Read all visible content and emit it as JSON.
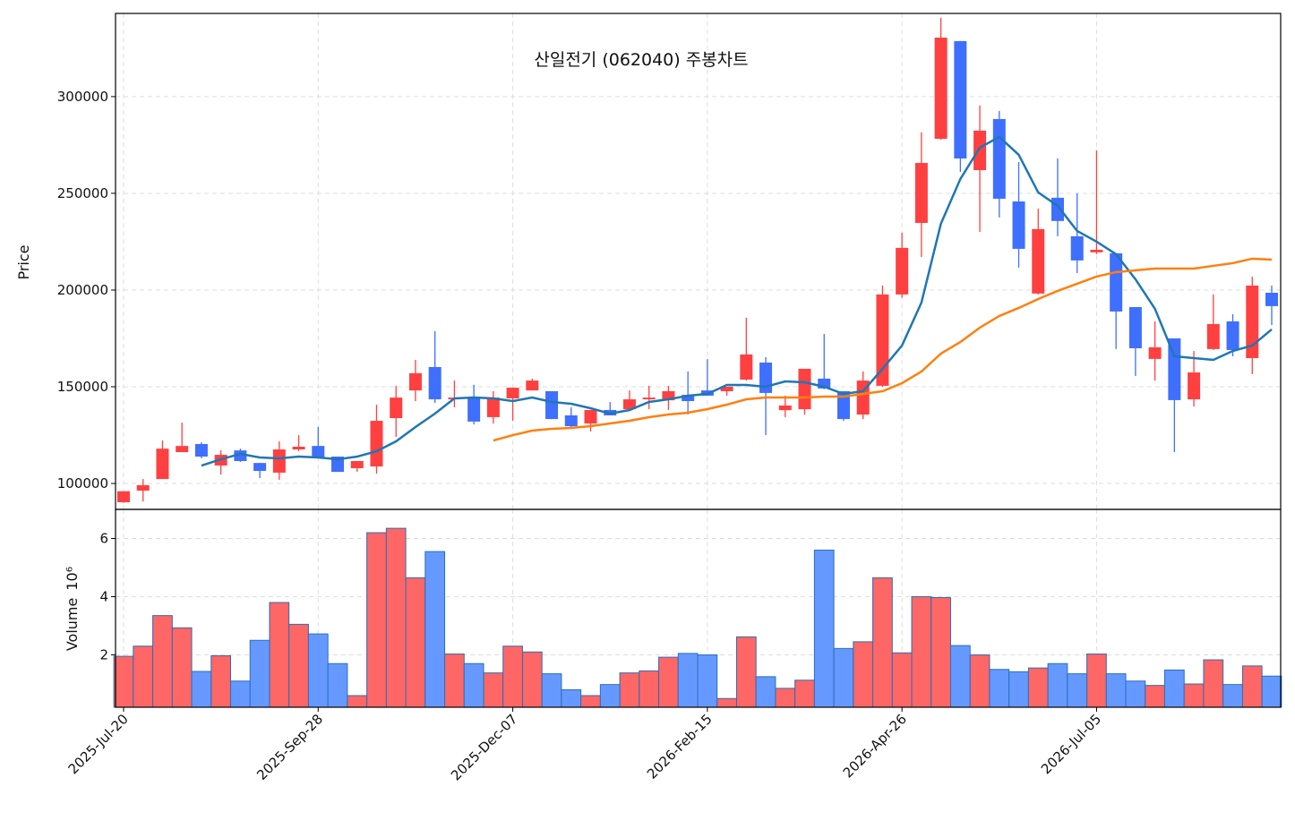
{
  "chart_data": {
    "type": "candlestick",
    "title": "산일전기 (062040) 주봉차트",
    "x": [
      "2025-Jul-20",
      "2025-Jul-27",
      "2025-Aug-03",
      "2025-Aug-10",
      "2025-Aug-17",
      "2025-Aug-24",
      "2025-Aug-31",
      "2025-Sep-07",
      "2025-Sep-14",
      "2025-Sep-21",
      "2025-Sep-28",
      "2025-Oct-05",
      "2025-Oct-12",
      "2025-Oct-19",
      "2025-Oct-26",
      "2025-Nov-02",
      "2025-Nov-09",
      "2025-Nov-16",
      "2025-Nov-23",
      "2025-Nov-30",
      "2025-Dec-07",
      "2025-Dec-14",
      "2025-Dec-21",
      "2025-Dec-28",
      "2026-Jan-04",
      "2026-Jan-11",
      "2026-Jan-18",
      "2026-Jan-25",
      "2026-Feb-01",
      "2026-Feb-08",
      "2026-Feb-15",
      "2026-Feb-22",
      "2026-Mar-01",
      "2026-Mar-08",
      "2026-Mar-15",
      "2026-Mar-22",
      "2026-Mar-29",
      "2026-Apr-05",
      "2026-Apr-12",
      "2026-Apr-19",
      "2026-Apr-26",
      "2026-May-03",
      "2026-May-10",
      "2026-May-17",
      "2026-May-24",
      "2026-May-31",
      "2026-Jun-07",
      "2026-Jun-14",
      "2026-Jun-21",
      "2026-Jun-28",
      "2026-Jul-05",
      "2026-Jul-12",
      "2026-Jul-19",
      "2026-Jul-26",
      "2026-Aug-02",
      "2026-Aug-09",
      "2026-Aug-16",
      "2026-Aug-23",
      "2026-Aug-30",
      "2026-Sep-06"
    ],
    "xticks": [
      "2025-Jul-20",
      "2025-Sep-28",
      "2025-Dec-07",
      "2026-Feb-15",
      "2026-Apr-26",
      "2026-Jul-05"
    ],
    "open": [
      90300,
      96300,
      102300,
      116200,
      120400,
      109300,
      117100,
      110600,
      105600,
      117600,
      119400,
      113900,
      107900,
      108800,
      133800,
      148100,
      160200,
      143500,
      144900,
      134300,
      144000,
      148100,
      147700,
      135200,
      131000,
      138000,
      138400,
      143500,
      143000,
      145800,
      148100,
      147700,
      153700,
      162500,
      137900,
      138400,
      154200,
      147700,
      135600,
      150500,
      197700,
      234700,
      278200,
      328700,
      262000,
      288400,
      245800,
      198200,
      247700,
      227800,
      219500,
      219000,
      191200,
      164400,
      175000,
      143500,
      169500,
      183800,
      164800,
      198600
    ],
    "high": [
      96000,
      102300,
      122200,
      131500,
      121300,
      117100,
      118000,
      110600,
      121800,
      125000,
      129200,
      113900,
      111600,
      140700,
      150500,
      163900,
      178700,
      153200,
      151000,
      147700,
      149500,
      154200,
      147700,
      139400,
      138000,
      142100,
      148100,
      150500,
      150500,
      157900,
      164300,
      150000,
      185700,
      165300,
      145400,
      159300,
      177300,
      147700,
      157900,
      202300,
      229600,
      281500,
      340800,
      328700,
      295400,
      292600,
      266200,
      242100,
      268000,
      250000,
      272200,
      219000,
      191200,
      183800,
      175000,
      168500,
      197700,
      187500,
      206900,
      202300
    ],
    "low": [
      90000,
      90700,
      102300,
      116200,
      113000,
      104600,
      111100,
      102800,
      101900,
      116700,
      113400,
      106000,
      106000,
      105100,
      124100,
      142600,
      141700,
      139400,
      130500,
      131000,
      132400,
      148100,
      133300,
      128700,
      126900,
      135200,
      138000,
      138400,
      138000,
      135700,
      145400,
      145400,
      153200,
      125000,
      134300,
      135600,
      148700,
      132400,
      133300,
      150000,
      196000,
      217100,
      277700,
      261100,
      230100,
      237500,
      211600,
      197700,
      227800,
      208800,
      218600,
      169500,
      155600,
      153200,
      116200,
      139800,
      169000,
      165700,
      156500,
      181900
    ],
    "close": [
      96000,
      99100,
      118000,
      119400,
      113900,
      114800,
      111600,
      106500,
      117600,
      119000,
      113400,
      106000,
      111600,
      132400,
      144400,
      157000,
      143500,
      144400,
      132000,
      144400,
      149500,
      153200,
      133300,
      129600,
      138000,
      135200,
      143500,
      144400,
      147700,
      142600,
      145400,
      150000,
      166700,
      146800,
      140300,
      159300,
      149100,
      133300,
      153200,
      197700,
      221800,
      265700,
      330500,
      268000,
      282400,
      247200,
      221300,
      231500,
      235700,
      215300,
      220800,
      188900,
      169900,
      170400,
      143100,
      157400,
      182400,
      169000,
      202300,
      191700
    ],
    "up_color": "#ff4040",
    "down_color": "#3f6fff",
    "ylabel": "Price",
    "ylim": [
      86600,
      343000
    ],
    "yticks": [
      100000,
      150000,
      200000,
      250000,
      300000
    ],
    "grid": true,
    "moving_averages": [
      {
        "color": "#1f77b4",
        "values": [
          null,
          null,
          null,
          null,
          109260,
          112500,
          115280,
          113430,
          112960,
          113890,
          113430,
          112500,
          113890,
          116670,
          121760,
          129170,
          136110,
          143980,
          144440,
          143980,
          142600,
          144440,
          142130,
          141210,
          138890,
          136110,
          137960,
          142130,
          143520,
          145370,
          146300,
          150930,
          150930,
          150000,
          152780,
          152320,
          150000,
          146300,
          147690,
          159260,
          171300,
          193520,
          234270,
          257420,
          273630,
          279180,
          269920,
          250480,
          243530,
          230560,
          225010,
          218530,
          205560,
          190290,
          165750,
          164820,
          163890,
          168520,
          171300,
          179640
        ]
      },
      {
        "color": "#ff7f0e",
        "values": [
          null,
          null,
          null,
          null,
          null,
          null,
          null,
          null,
          null,
          null,
          null,
          null,
          null,
          null,
          null,
          null,
          null,
          null,
          null,
          122220,
          125000,
          127320,
          128240,
          128710,
          129630,
          131020,
          132410,
          134260,
          135650,
          136580,
          138430,
          140740,
          143520,
          144440,
          144440,
          144440,
          144910,
          144910,
          146300,
          147690,
          151860,
          157880,
          167140,
          173150,
          180560,
          186580,
          190750,
          195380,
          199550,
          203250,
          206950,
          209270,
          210190,
          211120,
          211120,
          211120,
          212510,
          213900,
          216210,
          215750
        ]
      }
    ],
    "volume": [
      1.95,
      2.3,
      3.35,
      2.93,
      1.43,
      1.97,
      1.1,
      2.5,
      3.8,
      3.05,
      2.72,
      1.7,
      0.6,
      6.2,
      6.35,
      4.65,
      5.55,
      2.03,
      1.7,
      1.38,
      2.3,
      2.1,
      1.35,
      0.8,
      0.6,
      0.98,
      1.38,
      1.45,
      1.92,
      2.05,
      2.0,
      0.5,
      2.62,
      1.25,
      0.85,
      1.13,
      5.6,
      2.22,
      2.45,
      4.65,
      2.07,
      4.0,
      3.97,
      2.32,
      2.0,
      1.5,
      1.42,
      1.55,
      1.7,
      1.35,
      2.03,
      1.35,
      1.1,
      0.95,
      1.48,
      1.0,
      1.83,
      0.98,
      1.62,
      1.27
    ],
    "volume_up_color": "#ff6666",
    "volume_down_color": "#6699ff",
    "volume_edge_color": "#2a6fb8",
    "y2label": "Volume",
    "y2offset": "10⁶",
    "y2lim": [
      0.2,
      7.0
    ],
    "y2ticks": [
      2,
      4,
      6
    ]
  }
}
